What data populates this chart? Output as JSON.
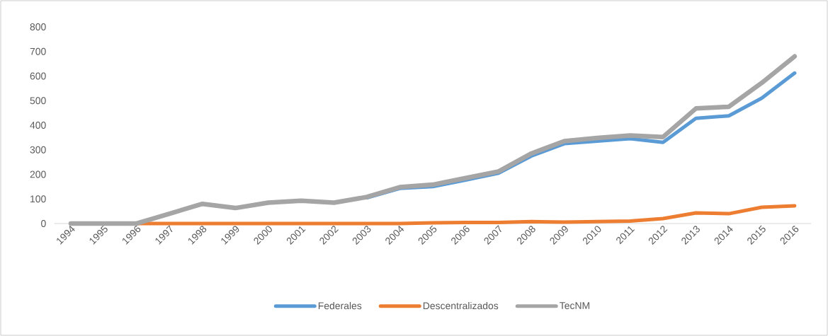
{
  "chart_data": {
    "type": "line",
    "categories": [
      "1994",
      "1995",
      "1996",
      "1997",
      "1998",
      "1999",
      "2000",
      "2001",
      "2002",
      "2003",
      "2004",
      "2005",
      "2006",
      "2007",
      "2008",
      "2009",
      "2010",
      "2011",
      "2012",
      "2013",
      "2014",
      "2015",
      "2016"
    ],
    "series": [
      {
        "name": "Federales",
        "color": "#5b9bd5",
        "values": [
          null,
          null,
          null,
          null,
          null,
          null,
          null,
          null,
          null,
          105,
          143,
          150,
          177,
          205,
          275,
          325,
          335,
          345,
          330,
          428,
          438,
          510,
          612
        ]
      },
      {
        "name": "Descentralizados",
        "color": "#ed7d31",
        "values": [
          null,
          null,
          0,
          0,
          0,
          0,
          0,
          0,
          0,
          0,
          0,
          3,
          4,
          4,
          8,
          6,
          8,
          10,
          20,
          43,
          40,
          66,
          72
        ]
      },
      {
        "name": "TecNM",
        "color": "#a5a5a5",
        "values": [
          0,
          0,
          0,
          40,
          80,
          63,
          85,
          93,
          85,
          108,
          148,
          158,
          185,
          212,
          285,
          335,
          348,
          358,
          352,
          468,
          475,
          572,
          680
        ]
      }
    ],
    "ylim": [
      0,
      800
    ],
    "yticks": [
      0,
      100,
      200,
      300,
      400,
      500,
      600,
      700,
      800
    ],
    "legend": "bottom"
  }
}
